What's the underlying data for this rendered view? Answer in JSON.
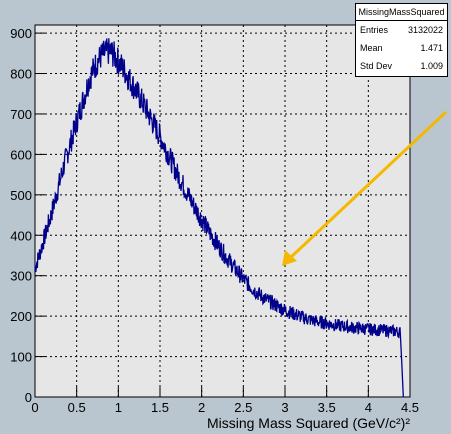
{
  "chart_data": {
    "type": "line",
    "title": "",
    "xlabel": "Missing Mass Squared (GeV/c²)²",
    "ylabel": "",
    "xlim": [
      0,
      4.5
    ],
    "ylim": [
      0,
      920
    ],
    "x_ticks": [
      "0",
      "0.5",
      "1",
      "1.5",
      "2",
      "2.5",
      "3",
      "3.5",
      "4",
      "4.5"
    ],
    "y_ticks": [
      "0",
      "100",
      "200",
      "300",
      "400",
      "500",
      "600",
      "700",
      "800",
      "900"
    ],
    "grid": true,
    "series": [
      {
        "color": "#00008b",
        "x": [
          0,
          0.05,
          0.1,
          0.15,
          0.2,
          0.25,
          0.3,
          0.35,
          0.4,
          0.45,
          0.5,
          0.55,
          0.6,
          0.65,
          0.7,
          0.75,
          0.8,
          0.85,
          0.9,
          0.95,
          1.0,
          1.05,
          1.1,
          1.15,
          1.2,
          1.3,
          1.4,
          1.5,
          1.6,
          1.7,
          1.8,
          1.9,
          2.0,
          2.1,
          2.2,
          2.3,
          2.4,
          2.5,
          2.6,
          2.7,
          2.8,
          2.9,
          3.0,
          3.1,
          3.2,
          3.3,
          3.4,
          3.5,
          3.6,
          3.7,
          3.8,
          3.9,
          4.0,
          4.1,
          4.2,
          4.3,
          4.38,
          4.4,
          4.42
        ],
        "y": [
          320,
          350,
          385,
          420,
          455,
          495,
          535,
          575,
          610,
          645,
          680,
          715,
          750,
          785,
          810,
          830,
          845,
          852,
          855,
          845,
          830,
          815,
          798,
          780,
          762,
          725,
          685,
          645,
          600,
          555,
          515,
          475,
          440,
          405,
          375,
          345,
          318,
          292,
          270,
          252,
          238,
          226,
          215,
          206,
          198,
          191,
          186,
          182,
          178,
          175,
          172,
          170,
          168,
          166,
          165,
          163,
          160,
          90,
          0
        ]
      }
    ],
    "stats": {
      "name": "MissingMassSquared",
      "entries_label": "Entries",
      "entries": "3132022",
      "mean_label": "Mean",
      "mean": "1.471",
      "std_label": "Std Dev",
      "std": "1.009"
    },
    "annotation_color": "#f5b800"
  }
}
